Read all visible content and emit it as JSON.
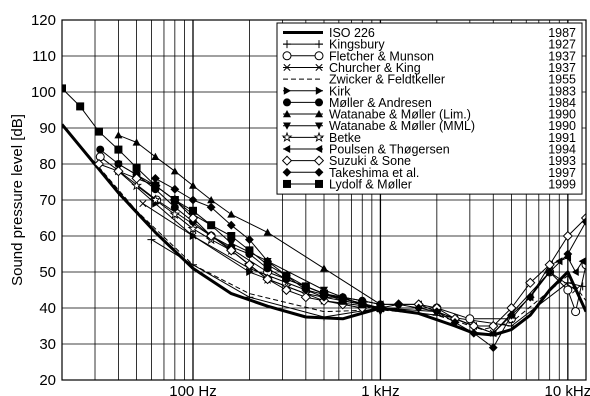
{
  "chart_data": {
    "type": "line",
    "title": "",
    "xlabel": "",
    "ylabel": "Sound pressure level [dB]",
    "x_scale": "log",
    "xlim": [
      20,
      12500
    ],
    "ylim": [
      20,
      120
    ],
    "x_ticks": [
      {
        "value": 100,
        "label": "100 Hz"
      },
      {
        "value": 1000,
        "label": "1 kHz"
      },
      {
        "value": 10000,
        "label": "10 kHz"
      }
    ],
    "y_ticks": [
      20,
      30,
      40,
      50,
      60,
      70,
      80,
      90,
      100,
      110,
      120
    ],
    "grid": true,
    "legend_position": "top-right",
    "series": [
      {
        "name": "ISO 226",
        "year": "1987",
        "marker": "none",
        "line": "thick",
        "x": [
          20,
          40,
          63,
          100,
          160,
          250,
          400,
          630,
          1000,
          1600,
          2500,
          3150,
          4000,
          5000,
          6300,
          8000,
          10000,
          12500
        ],
        "y": [
          91,
          72,
          61,
          51,
          44,
          40.5,
          37.5,
          37,
          40,
          38.5,
          35,
          33,
          32.5,
          34,
          38,
          45,
          50,
          39
        ]
      },
      {
        "name": "Kingsbury",
        "year": "1927",
        "marker": "plus",
        "line": "solid",
        "x": [
          60,
          100,
          200,
          500,
          1000,
          2000,
          5000,
          10000,
          12000
        ],
        "y": [
          59,
          52,
          43,
          37.5,
          40,
          38,
          35,
          47,
          46
        ]
      },
      {
        "name": "Fletcher & Munson",
        "year": "1937",
        "marker": "open-circle",
        "line": "solid",
        "x": [
          32,
          64,
          125,
          250,
          500,
          1000,
          2000,
          3000,
          5000,
          8000,
          10000,
          11000,
          12500
        ],
        "y": [
          82,
          70,
          60,
          50,
          44,
          40,
          40,
          37,
          37,
          50,
          45,
          39,
          52
        ]
      },
      {
        "name": "Churcher & King",
        "year": "1937",
        "marker": "cross",
        "line": "solid",
        "x": [
          54,
          100,
          200,
          400,
          1000,
          2000,
          4000,
          8000,
          11000
        ],
        "y": [
          69,
          60,
          51,
          45,
          40,
          39,
          33,
          50,
          45
        ]
      },
      {
        "name": "Zwicker & Feldtkeller",
        "year": "1955",
        "marker": "none",
        "line": "dashed",
        "x": [
          20,
          50,
          100,
          200,
          500,
          1000,
          2000,
          3500,
          5000,
          10000,
          12500
        ],
        "y": [
          91,
          67,
          52,
          44,
          39,
          39.5,
          38,
          34,
          36,
          49,
          42
        ]
      },
      {
        "name": "Kirk",
        "year": "1983",
        "marker": "filled-right-triangle",
        "line": "solid",
        "x": [
          40,
          63,
          100,
          200,
          500,
          1000
        ],
        "y": [
          78,
          69,
          60,
          50,
          42,
          40
        ]
      },
      {
        "name": "Møller & Andresen",
        "year": "1984",
        "marker": "filled-circle",
        "line": "solid",
        "x": [
          32,
          40,
          50,
          63,
          80,
          100,
          125,
          160,
          200,
          250,
          315,
          400,
          500,
          630,
          800,
          1000
        ],
        "y": [
          84,
          80,
          77,
          73,
          68,
          64,
          60,
          57,
          55,
          51,
          48,
          46,
          44,
          43,
          42,
          41
        ]
      },
      {
        "name": "Watanabe & Møller (Lim.)",
        "year": "1990",
        "marker": "filled-up-triangle",
        "line": "solid",
        "x": [
          40,
          50,
          63,
          80,
          100,
          125,
          160,
          250,
          500,
          1000
        ],
        "y": [
          88,
          86,
          82,
          78,
          74,
          70,
          66,
          61,
          51,
          41
        ]
      },
      {
        "name": "Watanabe & Møller (MML)",
        "year": "1990",
        "marker": "filled-down-triangle",
        "line": "solid",
        "x": [
          40,
          50,
          63,
          80,
          100,
          125,
          160,
          250,
          500,
          1000
        ],
        "y": [
          80,
          77,
          74,
          70,
          66,
          63,
          58,
          53,
          45,
          39
        ]
      },
      {
        "name": "Betke",
        "year": "1991",
        "marker": "open-star",
        "line": "solid",
        "x": [
          50,
          63,
          80,
          100,
          125,
          160,
          200,
          250,
          315,
          400,
          500,
          630,
          800,
          1000
        ],
        "y": [
          74,
          70,
          66,
          62,
          59,
          56,
          52,
          48,
          46,
          44,
          43,
          42,
          41,
          40
        ]
      },
      {
        "name": "Poulsen & Thøgersen",
        "year": "1994",
        "marker": "filled-left-triangle",
        "line": "solid",
        "x": [
          1000,
          1600,
          2500,
          3150,
          4000,
          5000,
          6300,
          8000,
          9000,
          10000,
          11000,
          12000
        ],
        "y": [
          41,
          41,
          37,
          35,
          33,
          38,
          43,
          52,
          53,
          54,
          50,
          53
        ]
      },
      {
        "name": "Suzuki & Sone",
        "year": "1993",
        "marker": "open-diamond",
        "line": "solid",
        "x": [
          31.5,
          40,
          50,
          63,
          80,
          100,
          125,
          160,
          200,
          250,
          315,
          400,
          500,
          630,
          800,
          1000,
          1250,
          1600,
          2000,
          2500,
          3150,
          4000,
          5000,
          6300,
          8000,
          10000,
          12500
        ],
        "y": [
          80,
          78,
          76,
          74,
          70,
          65,
          60,
          56,
          52,
          48,
          45,
          43,
          42,
          41,
          40,
          40,
          41,
          41,
          40,
          37,
          35,
          35,
          40,
          47,
          52,
          60,
          65
        ]
      },
      {
        "name": "Takeshima et al.",
        "year": "1997",
        "marker": "filled-diamond",
        "line": "solid",
        "x": [
          63,
          80,
          100,
          125,
          160,
          200,
          250,
          315,
          400,
          500,
          630,
          800,
          1000,
          1250,
          1600,
          2000,
          2500,
          3150,
          4000,
          5000,
          6300,
          8000,
          10000,
          12500
        ],
        "y": [
          76,
          73,
          70,
          68,
          63,
          59,
          53,
          49,
          45,
          43,
          43,
          42,
          41,
          41,
          40,
          39,
          36,
          33,
          29,
          38,
          43,
          50,
          55,
          64
        ]
      },
      {
        "name": "Lydolf & Møller",
        "year": "1999",
        "marker": "filled-square",
        "line": "solid",
        "x": [
          20,
          25,
          31.5,
          40,
          50,
          63,
          80,
          100,
          125,
          160,
          200,
          250,
          315,
          400,
          500,
          630,
          800,
          1000
        ],
        "y": [
          101,
          96,
          89,
          84,
          79,
          74,
          70,
          67,
          63,
          60,
          56,
          52,
          49,
          46,
          44,
          42,
          41,
          40
        ]
      }
    ]
  }
}
